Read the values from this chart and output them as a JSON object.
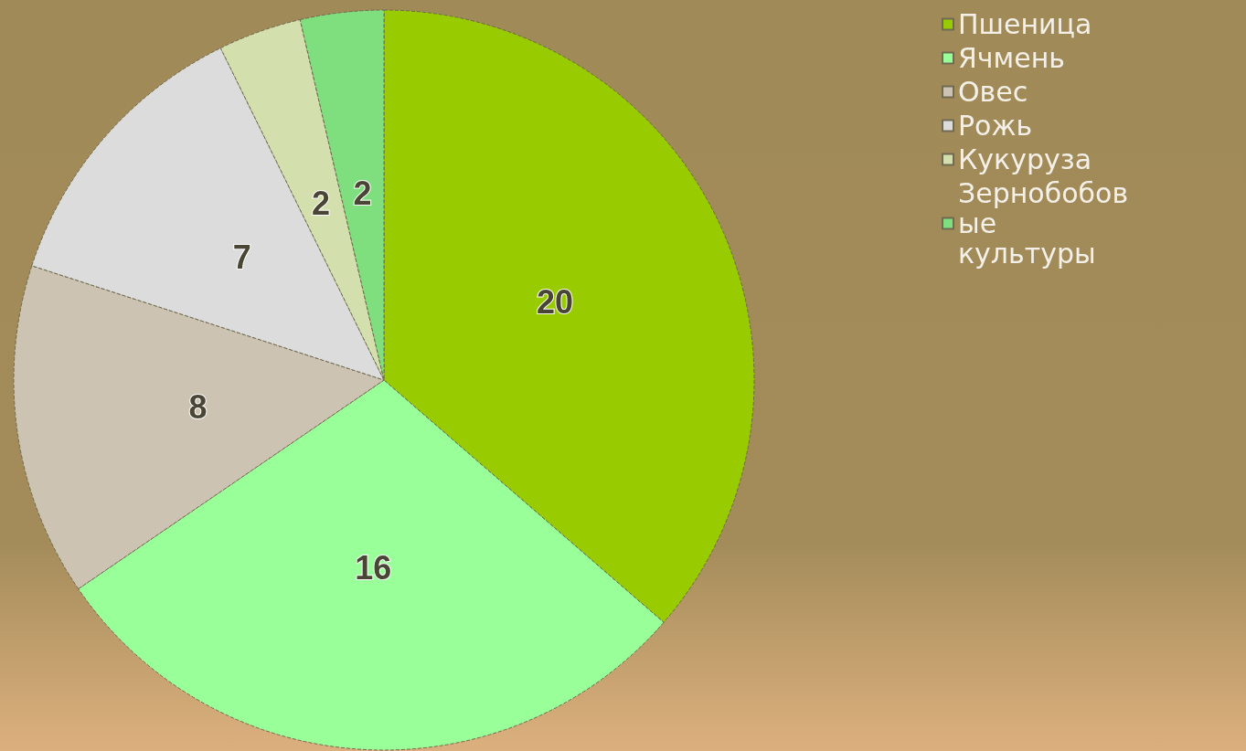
{
  "chart_data": {
    "type": "pie",
    "categories": [
      "Пшеница",
      "Ячмень",
      "Овес",
      "Рожь",
      "Кукуруза",
      "Зернобобовые культуры"
    ],
    "values": [
      20,
      16,
      8,
      7,
      2,
      2
    ],
    "colors": [
      "#99cc00",
      "#99ff99",
      "#cdc3b3",
      "#dcdcdc",
      "#d3e0ad",
      "#7fdf7f"
    ],
    "data_labels": true,
    "legend": "top right"
  }
}
